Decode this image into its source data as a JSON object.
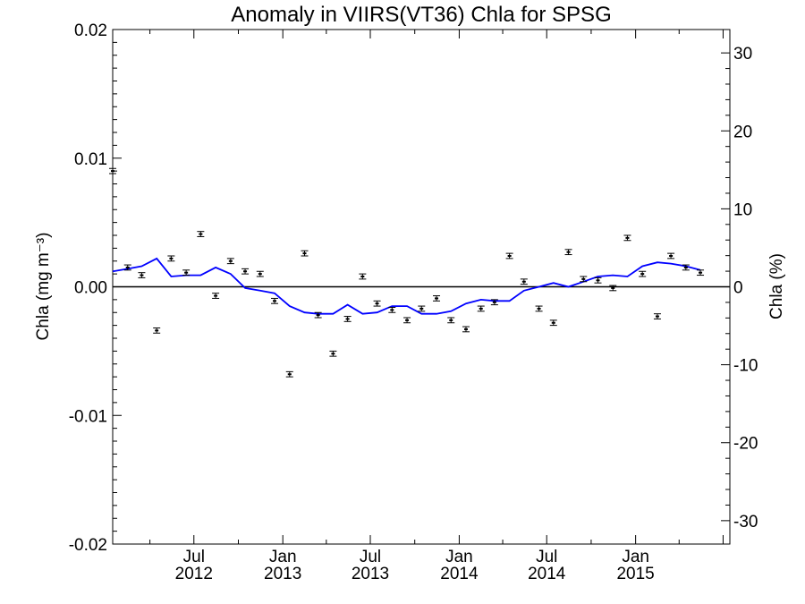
{
  "chart_data": {
    "type": "line",
    "title": "Anomaly in VIIRS(VT36) Chla for SPSG",
    "ylabel_left": "Chla (mg m⁻³)",
    "ylabel_right": "Chla (%)",
    "xlabel": "",
    "ylim": [
      -0.02,
      0.02
    ],
    "ylim_right": [
      -33,
      33
    ],
    "xlim": [
      "2012-01-15",
      "2015-07-15"
    ],
    "yticks_left": [
      "0.02",
      "0.01",
      "0.00",
      "-0.01",
      "-0.02"
    ],
    "yticks_left_values": [
      0.02,
      0.01,
      0.0,
      -0.01,
      -0.02
    ],
    "yticks_right": [
      "30",
      "20",
      "10",
      "0",
      "-10",
      "-20",
      "-30"
    ],
    "yticks_right_values": [
      30,
      20,
      10,
      0,
      -10,
      -20,
      -30
    ],
    "xticks": [
      {
        "date": "2012-07-01",
        "line1": "Jul",
        "line2": "2012"
      },
      {
        "date": "2013-01-01",
        "line1": "Jan",
        "line2": "2013"
      },
      {
        "date": "2013-07-01",
        "line1": "Jul",
        "line2": "2013"
      },
      {
        "date": "2014-01-01",
        "line1": "Jan",
        "line2": "2014"
      },
      {
        "date": "2014-07-01",
        "line1": "Jul",
        "line2": "2014"
      },
      {
        "date": "2015-01-01",
        "line1": "Jan",
        "line2": "2015"
      }
    ],
    "zero_line": 0.0,
    "series": [
      {
        "kind": "errorbar-points",
        "color": "#000000",
        "error": 0.0002,
        "x": [
          "2012-01-15",
          "2012-02-15",
          "2012-03-15",
          "2012-04-15",
          "2012-05-15",
          "2012-06-15",
          "2012-07-15",
          "2012-08-15",
          "2012-09-15",
          "2012-10-15",
          "2012-11-15",
          "2012-12-15",
          "2013-01-15",
          "2013-02-15",
          "2013-03-15",
          "2013-04-15",
          "2013-05-15",
          "2013-06-15",
          "2013-07-15",
          "2013-08-15",
          "2013-09-15",
          "2013-10-15",
          "2013-11-15",
          "2013-12-15",
          "2014-01-15",
          "2014-02-15",
          "2014-03-15",
          "2014-04-15",
          "2014-05-15",
          "2014-06-15",
          "2014-07-15",
          "2014-08-15",
          "2014-09-15",
          "2014-10-15",
          "2014-11-15",
          "2014-12-15",
          "2015-01-15",
          "2015-02-15",
          "2015-03-15",
          "2015-04-15",
          "2015-05-15"
        ],
        "y": [
          0.009,
          0.0015,
          0.0009,
          -0.0034,
          0.0022,
          0.0011,
          0.0041,
          -0.0007,
          0.002,
          0.0012,
          0.001,
          -0.0011,
          -0.0068,
          0.0026,
          -0.0022,
          -0.0052,
          -0.0025,
          0.0008,
          -0.0013,
          -0.0018,
          -0.0026,
          -0.0017,
          -0.0009,
          -0.0026,
          -0.0033,
          -0.0017,
          -0.0012,
          0.0024,
          0.0004,
          -0.0017,
          -0.0028,
          0.0027,
          0.0006,
          0.0005,
          -0.0001,
          0.0038,
          0.001,
          -0.0023,
          0.0024,
          0.0015,
          0.0011
        ]
      },
      {
        "kind": "line",
        "color": "#0000ff",
        "x": [
          "2012-01-15",
          "2012-02-15",
          "2012-03-15",
          "2012-04-15",
          "2012-05-15",
          "2012-06-15",
          "2012-07-15",
          "2012-08-15",
          "2012-09-15",
          "2012-10-15",
          "2012-11-15",
          "2012-12-15",
          "2013-01-15",
          "2013-02-15",
          "2013-03-15",
          "2013-04-15",
          "2013-05-15",
          "2013-06-15",
          "2013-07-15",
          "2013-08-15",
          "2013-09-15",
          "2013-10-15",
          "2013-11-15",
          "2013-12-15",
          "2014-01-15",
          "2014-02-15",
          "2014-03-15",
          "2014-04-15",
          "2014-05-15",
          "2014-06-15",
          "2014-07-15",
          "2014-08-15",
          "2014-09-15",
          "2014-10-15",
          "2014-11-15",
          "2014-12-15",
          "2015-01-15",
          "2015-02-15",
          "2015-03-15",
          "2015-04-15",
          "2015-05-15"
        ],
        "y": [
          0.0012,
          0.0014,
          0.0016,
          0.0022,
          0.0008,
          0.0009,
          0.0009,
          0.0015,
          0.001,
          -0.0001,
          -0.0003,
          -0.0005,
          -0.0015,
          -0.002,
          -0.0021,
          -0.0021,
          -0.0014,
          -0.0021,
          -0.002,
          -0.0015,
          -0.0015,
          -0.0021,
          -0.0021,
          -0.0019,
          -0.0013,
          -0.001,
          -0.0011,
          -0.0011,
          -0.0003,
          0.0,
          0.0003,
          0.0,
          0.0004,
          0.0008,
          0.0009,
          0.0008,
          0.0016,
          0.0019,
          0.0018,
          0.0016,
          0.0013
        ]
      }
    ],
    "grid": false,
    "legend": "none"
  }
}
